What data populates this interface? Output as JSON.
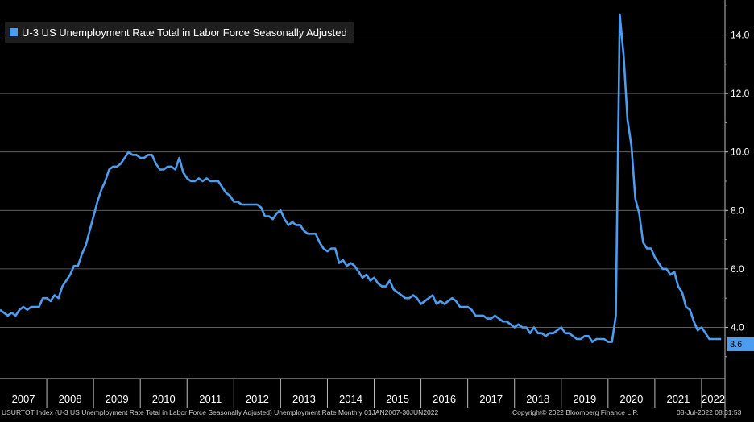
{
  "colors": {
    "background": "#000000",
    "series": "#4a9df0",
    "grid": "#6e6e6e",
    "text": "#ffffff"
  },
  "footer": {
    "description": "USURTOT Index (U-3 US Unemployment Rate Total in Labor Force Seasonally Adjusted) Unemployment Rate  Monthly 01JAN2007-30JUN2022",
    "copyright": "Copyright© 2022 Bloomberg Finance L.P.",
    "timestamp": "08-Jul-2022 08:31:53"
  },
  "last_value_label": "3.6",
  "chart_data": {
    "type": "line",
    "legend": "U-3 US Unemployment Rate Total in Labor Force Seasonally Adjusted",
    "legend_position": "top-left",
    "y_axis_position": "right",
    "ylim": [
      2.8,
      15.2
    ],
    "yticks": [
      "4.0",
      "6.0",
      "8.0",
      "10.0",
      "12.0",
      "14.0"
    ],
    "yticks_values": [
      4,
      6,
      8,
      10,
      12,
      14
    ],
    "xlim": [
      2007.0,
      2022.5
    ],
    "xticks": [
      "2007",
      "2008",
      "2009",
      "2010",
      "2011",
      "2012",
      "2013",
      "2014",
      "2015",
      "2016",
      "2017",
      "2018",
      "2019",
      "2020",
      "2021",
      "2022"
    ],
    "grid": "horizontal",
    "series": [
      {
        "start": "2007-01",
        "frequency": "monthly",
        "values": [
          4.6,
          4.5,
          4.4,
          4.5,
          4.4,
          4.6,
          4.7,
          4.6,
          4.7,
          4.7,
          4.7,
          5.0,
          5.0,
          4.9,
          5.1,
          5.0,
          5.4,
          5.6,
          5.8,
          6.1,
          6.1,
          6.5,
          6.8,
          7.3,
          7.8,
          8.3,
          8.7,
          9.0,
          9.4,
          9.5,
          9.5,
          9.6,
          9.8,
          10.0,
          9.9,
          9.9,
          9.8,
          9.8,
          9.9,
          9.9,
          9.6,
          9.4,
          9.4,
          9.5,
          9.5,
          9.4,
          9.8,
          9.3,
          9.1,
          9.0,
          9.0,
          9.1,
          9.0,
          9.1,
          9.0,
          9.0,
          9.0,
          8.8,
          8.6,
          8.5,
          8.3,
          8.3,
          8.2,
          8.2,
          8.2,
          8.2,
          8.2,
          8.1,
          7.8,
          7.8,
          7.7,
          7.9,
          8.0,
          7.7,
          7.5,
          7.6,
          7.5,
          7.5,
          7.3,
          7.2,
          7.2,
          7.2,
          6.9,
          6.7,
          6.6,
          6.7,
          6.7,
          6.2,
          6.3,
          6.1,
          6.2,
          6.1,
          5.9,
          5.7,
          5.8,
          5.6,
          5.7,
          5.5,
          5.4,
          5.4,
          5.6,
          5.3,
          5.2,
          5.1,
          5.0,
          5.0,
          5.1,
          5.0,
          4.8,
          4.9,
          5.0,
          5.1,
          4.8,
          4.9,
          4.8,
          4.9,
          5.0,
          4.9,
          4.7,
          4.7,
          4.7,
          4.6,
          4.4,
          4.4,
          4.4,
          4.3,
          4.3,
          4.4,
          4.3,
          4.2,
          4.2,
          4.1,
          4.0,
          4.1,
          4.0,
          4.0,
          3.8,
          4.0,
          3.8,
          3.8,
          3.7,
          3.8,
          3.8,
          3.9,
          4.0,
          3.8,
          3.8,
          3.7,
          3.6,
          3.6,
          3.7,
          3.7,
          3.5,
          3.6,
          3.6,
          3.6,
          3.5,
          3.5,
          4.4,
          14.7,
          13.3,
          11.1,
          10.2,
          8.4,
          7.9,
          6.9,
          6.7,
          6.7,
          6.4,
          6.2,
          6.0,
          6.0,
          5.8,
          5.9,
          5.4,
          5.2,
          4.7,
          4.6,
          4.2,
          3.9,
          4.0,
          3.8,
          3.6,
          3.6,
          3.6,
          3.6
        ]
      }
    ]
  }
}
